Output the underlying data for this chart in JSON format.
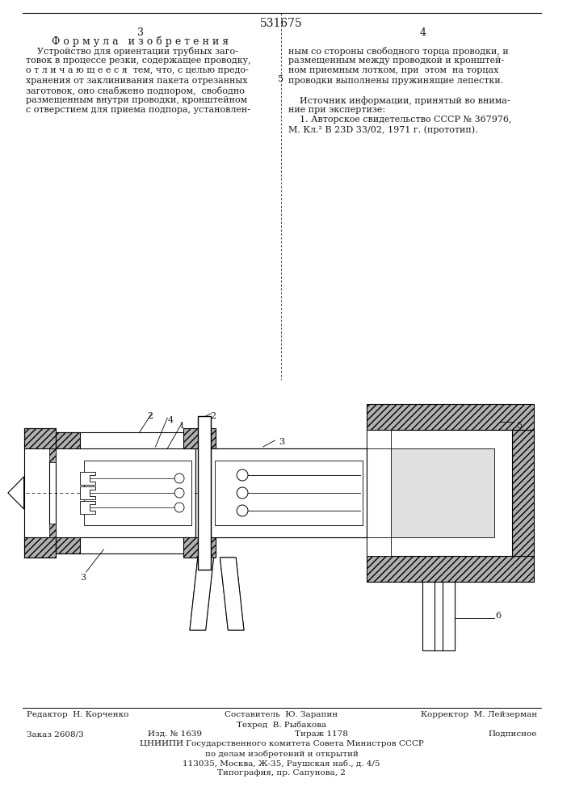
{
  "patent_number": "531675",
  "page_left": "3",
  "page_right": "4",
  "section_title": "Ф о р м у л а   и з о б р е т е н и я",
  "left_text_lines": [
    "    Устройство для ориентации трубных заго-",
    "товок в процессе резки, содержащее проводку,",
    "о т л и ч а ю щ е е с я  тем, что, с целью предо-",
    "хранения от заклинивания пакета отрезанных",
    "заготовок, оно снабжено подпором,  свободно",
    "размещенным внутри проводки, кронштейном",
    "с отверстием для приема подпора, установлен-"
  ],
  "right_text_lines_1": [
    "ным со стороны свободного торца проводки, и",
    "размещенным между проводкой и кронштей-",
    "ном приемным лотком, при  этом  на торцах",
    "проводки выполнены пружинящие лепестки."
  ],
  "right_text_lines_2": [
    "    Источник информации, принятый во внима-",
    "ние при экспертизе:",
    "    1. Авторское свидетельство СССР № 367976,",
    "М. Кл.² В 23D 33/02, 1971 г. (прототип)."
  ],
  "line_num_5": "5",
  "bottom_editor": "Редактор  Н. Корченко",
  "bottom_composer": "Составитель  Ю. Зарапин",
  "bottom_corrector": "Корректор  М. Лейзерман",
  "bottom_techred": "Техред  В. Рыбакова",
  "bottom_order": "Заказ 2608/3",
  "bottom_pub": "Изд. № 1639",
  "bottom_edition": "Тираж 1178",
  "bottom_signed": "Подписное",
  "bottom_org": "ЦНИИПИ Государственного комитета Совета Министров СССР",
  "bottom_org2": "по делам изобретений и открытий",
  "bottom_address": "113035, Москва, Ж-35, Раушская наб., д. 4/5",
  "bottom_print": "Типография, пр. Сапунова, 2",
  "bg_color": "#ffffff",
  "text_color": "#1a1a1a"
}
